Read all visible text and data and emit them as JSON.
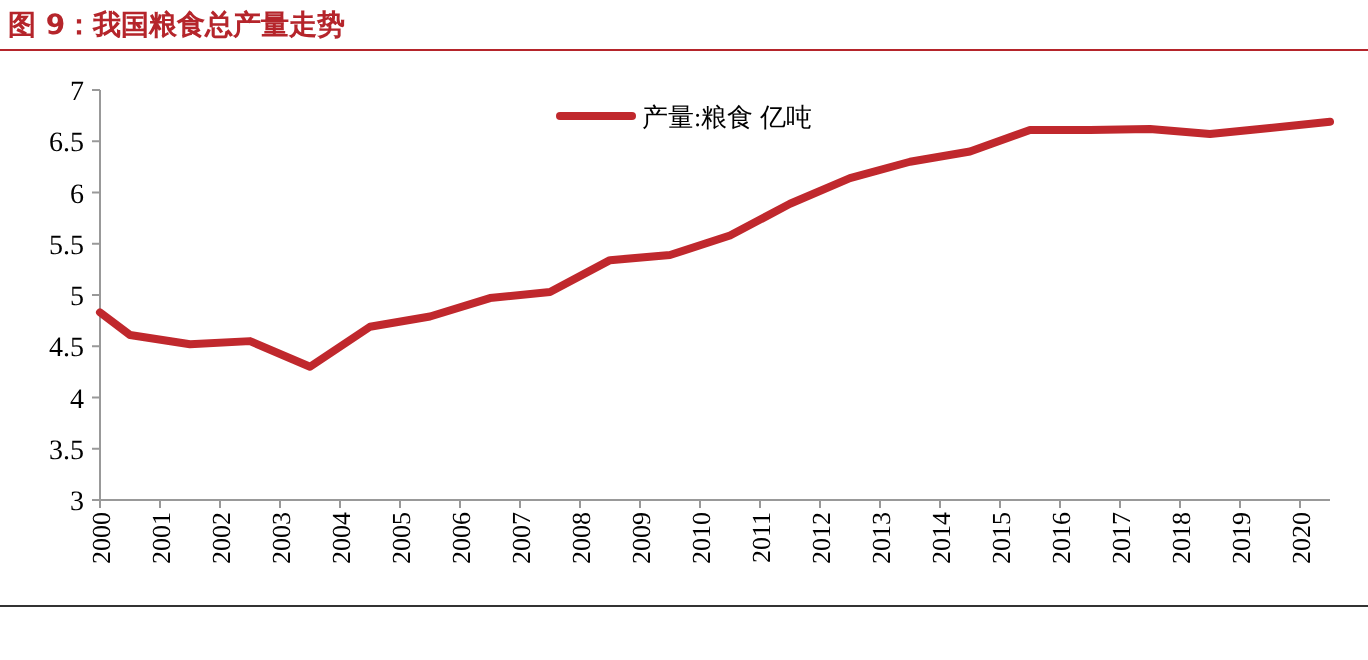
{
  "chart_data": {
    "type": "line",
    "title": "图 9：我国粮食总产量走势",
    "x": [
      2000,
      2000.5,
      2001.5,
      2002.5,
      2003.5,
      2004.5,
      2005.5,
      2006.5,
      2007.5,
      2008.5,
      2009.5,
      2010.5,
      2011.5,
      2012.5,
      2013.5,
      2014.5,
      2015.5,
      2016.5,
      2017.5,
      2018.5,
      2019.5,
      2020.5
    ],
    "series": [
      {
        "name": "产量:粮食 亿吨",
        "color": "#c0282d",
        "values": [
          4.83,
          4.61,
          4.52,
          4.55,
          4.3,
          4.69,
          4.79,
          4.97,
          5.03,
          5.34,
          5.39,
          5.58,
          5.89,
          6.14,
          6.3,
          6.4,
          6.61,
          6.61,
          6.62,
          6.57,
          6.63,
          6.69
        ]
      }
    ],
    "xlim": [
      2000,
      2020.5
    ],
    "xticks": [
      2000,
      2001,
      2002,
      2003,
      2004,
      2005,
      2006,
      2007,
      2008,
      2009,
      2010,
      2011,
      2012,
      2013,
      2014,
      2015,
      2016,
      2017,
      2018,
      2019,
      2020
    ],
    "ylim": [
      3,
      7
    ],
    "yticks": [
      3,
      3.5,
      4,
      4.5,
      5,
      5.5,
      6,
      6.5,
      7
    ],
    "legend": "top",
    "grid": false,
    "marker": "none",
    "line_style": "solid"
  }
}
